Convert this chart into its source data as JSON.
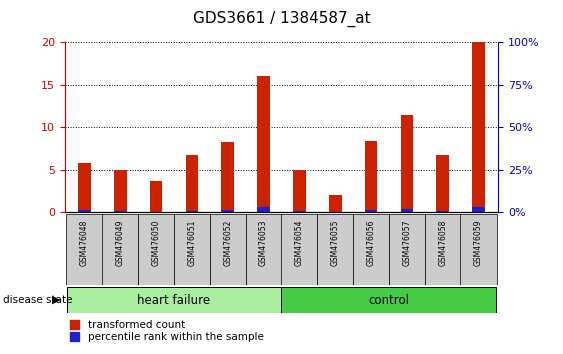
{
  "title": "GDS3661 / 1384587_at",
  "samples": [
    "GSM476048",
    "GSM476049",
    "GSM476050",
    "GSM476051",
    "GSM476052",
    "GSM476053",
    "GSM476054",
    "GSM476055",
    "GSM476056",
    "GSM476057",
    "GSM476058",
    "GSM476059"
  ],
  "transformed_count": [
    5.8,
    5.0,
    3.7,
    6.8,
    8.3,
    16.0,
    5.0,
    2.0,
    8.4,
    11.5,
    6.8,
    20.0
  ],
  "percentile_rank_scaled": [
    0.24,
    0.14,
    0.08,
    0.22,
    0.3,
    0.64,
    0.16,
    0.06,
    0.26,
    0.38,
    0.16,
    0.66
  ],
  "groups": {
    "heart failure": [
      0,
      5
    ],
    "control": [
      6,
      11
    ]
  },
  "hf_color": "#AAEEA0",
  "ct_color": "#44CC44",
  "ylim_left": [
    0,
    20
  ],
  "ylim_right": [
    0,
    100
  ],
  "yticks_left": [
    0,
    5,
    10,
    15,
    20
  ],
  "yticks_right": [
    0,
    25,
    50,
    75,
    100
  ],
  "left_tick_color": "#CC0000",
  "right_tick_color": "#0000BB",
  "bar_color_red": "#CC2200",
  "bar_color_blue": "#2222CC",
  "bar_width": 0.35,
  "title_fontsize": 11,
  "tick_fontsize": 8,
  "label_fontsize": 8
}
